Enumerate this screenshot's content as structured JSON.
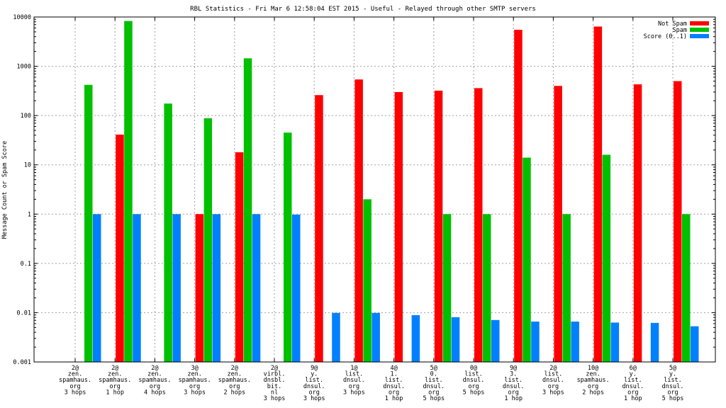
{
  "chart_data": {
    "type": "bar",
    "title": "RBL Statistics - Fri Mar  6 12:58:04 EST 2015 - Useful - Relayed through other SMTP servers",
    "xlabel": "",
    "ylabel": "Message Count or Spam Score",
    "yscale": "log",
    "ylim": [
      0.001,
      10000
    ],
    "yticks": [
      "0.001",
      "0.01",
      "0.1",
      "1",
      "10",
      "100",
      "1000",
      "10000"
    ],
    "grid": true,
    "legend_position": "top-right",
    "categories": [
      [
        "2@",
        "zen.",
        "spamhaus.",
        "org",
        "3 hops"
      ],
      [
        "2@",
        "zen.",
        "spamhaus.",
        "org",
        "1 hop"
      ],
      [
        "2@",
        "zen.",
        "spamhaus.",
        "org",
        "4 hops"
      ],
      [
        "3@",
        "zen.",
        "spamhaus.",
        "org",
        "3 hops"
      ],
      [
        "2@",
        "zen.",
        "spamhaus.",
        "org",
        "2 hops"
      ],
      [
        "2@",
        "virbl.",
        "dnsbl.",
        "bit.",
        "nl",
        "3 hops"
      ],
      [
        "9@",
        "y.",
        "list.",
        "dnsul.",
        "org",
        "3 hops"
      ],
      [
        "1@",
        "list.",
        "dnsul.",
        "org",
        "3 hops"
      ],
      [
        "4@",
        "1.",
        "list.",
        "dnsul.",
        "org",
        "1 hop"
      ],
      [
        "5@",
        "0.",
        "list.",
        "dnsul.",
        "org",
        "5 hops"
      ],
      [
        "0@",
        "list.",
        "dnsul.",
        "org",
        "5 hops"
      ],
      [
        "9@",
        "3.",
        "list.",
        "dnsul.",
        "org",
        "1 hop"
      ],
      [
        "2@",
        "list.",
        "dnsul.",
        "org",
        "3 hops"
      ],
      [
        "10@",
        "zen.",
        "spamhaus.",
        "org",
        "2 hops"
      ],
      [
        "6@",
        "y.",
        "list.",
        "dnsul.",
        "org",
        "1 hop"
      ],
      [
        "5@",
        "y.",
        "list.",
        "dnsul.",
        "org",
        "5 hops"
      ]
    ],
    "series": [
      {
        "name": "Not Spam",
        "color": "#ff0000",
        "values": [
          null,
          41,
          null,
          1,
          18,
          null,
          260,
          540,
          300,
          320,
          360,
          5500,
          400,
          6400,
          430,
          500
        ]
      },
      {
        "name": "Spam",
        "color": "#00c000",
        "values": [
          420,
          8300,
          175,
          88,
          1450,
          45,
          null,
          2,
          null,
          1,
          1,
          14,
          1,
          16,
          null,
          1
        ]
      },
      {
        "name": "Score (0..1)",
        "color": "#0080ff",
        "values": [
          1,
          1,
          1,
          1,
          1,
          0.98,
          0.0099,
          0.0099,
          0.0089,
          0.0081,
          0.0071,
          0.0066,
          0.0066,
          0.0063,
          0.0062,
          0.0053
        ]
      }
    ]
  }
}
